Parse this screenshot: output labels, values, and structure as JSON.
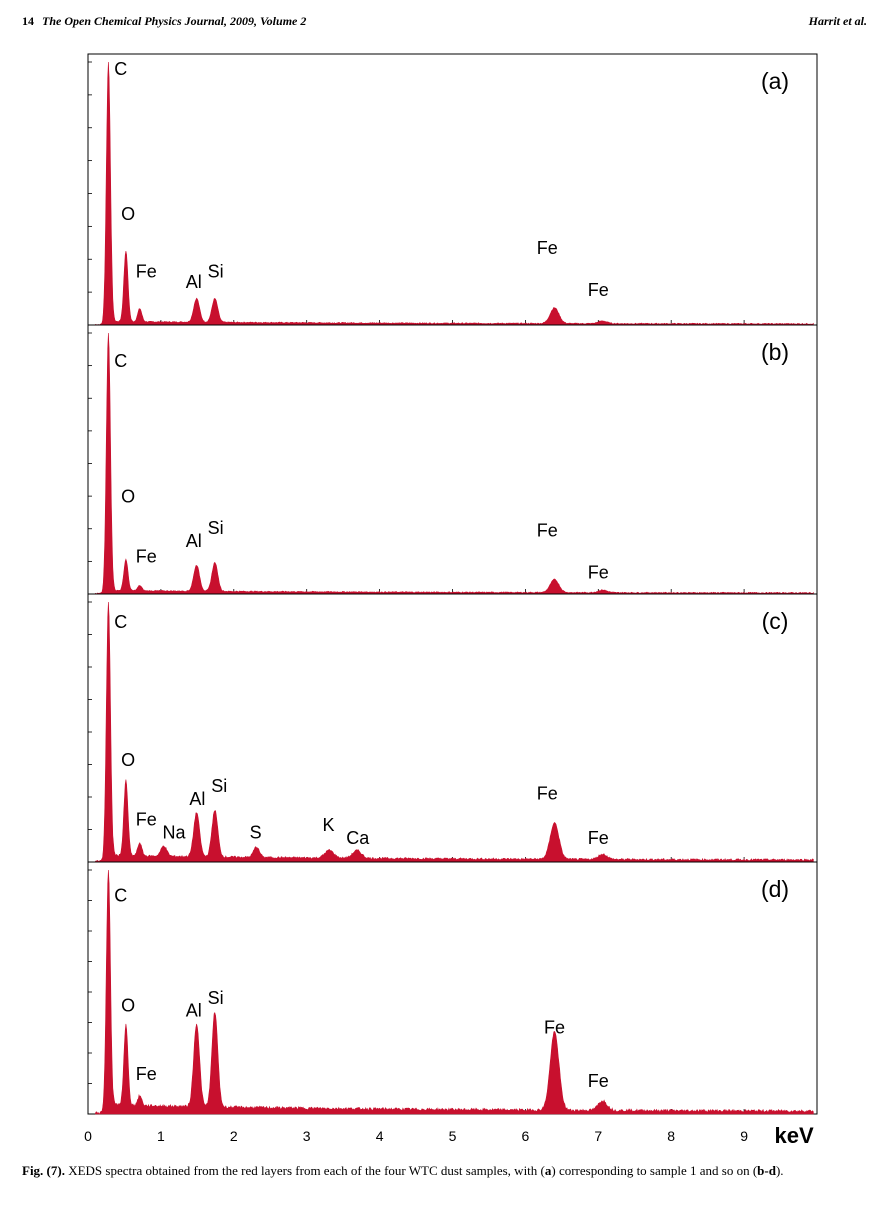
{
  "header": {
    "page_number": "14",
    "journal": "The Open Chemical Physics Journal, 2009, Volume 2",
    "authors": "Harrit et al."
  },
  "chart_data": {
    "type": "area",
    "x_unit_label": "keV",
    "xlim": [
      0,
      10
    ],
    "x_ticks": [
      "0",
      "1",
      "2",
      "3",
      "4",
      "5",
      "6",
      "7",
      "8",
      "9"
    ],
    "fill_color": "#c8102e",
    "panels": [
      {
        "label": "(a)",
        "ylim": [
          0,
          100
        ],
        "peaks": [
          {
            "element": "C",
            "x": 0.28,
            "y": 100
          },
          {
            "element": "O",
            "x": 0.52,
            "y": 27
          },
          {
            "element": "Fe",
            "x": 0.71,
            "y": 5
          },
          {
            "element": "Al",
            "x": 1.49,
            "y": 9
          },
          {
            "element": "Si",
            "x": 1.74,
            "y": 9
          },
          {
            "element": "Fe",
            "x": 6.4,
            "y": 6
          },
          {
            "element": "Fe",
            "x": 7.06,
            "y": 1
          }
        ],
        "labels": [
          {
            "text": "C",
            "x": 0.45,
            "y": 95
          },
          {
            "text": "O",
            "x": 0.55,
            "y": 40
          },
          {
            "text": "Fe",
            "x": 0.8,
            "y": 18
          },
          {
            "text": "Al",
            "x": 1.45,
            "y": 14
          },
          {
            "text": "Si",
            "x": 1.75,
            "y": 18
          },
          {
            "text": "Fe",
            "x": 6.3,
            "y": 27
          },
          {
            "text": "Fe",
            "x": 7.0,
            "y": 11
          }
        ]
      },
      {
        "label": "(b)",
        "ylim": [
          0,
          100
        ],
        "peaks": [
          {
            "element": "C",
            "x": 0.28,
            "y": 100
          },
          {
            "element": "O",
            "x": 0.52,
            "y": 12
          },
          {
            "element": "Fe",
            "x": 0.71,
            "y": 2
          },
          {
            "element": "Al",
            "x": 1.49,
            "y": 10
          },
          {
            "element": "Si",
            "x": 1.74,
            "y": 11
          },
          {
            "element": "Fe",
            "x": 6.4,
            "y": 5
          },
          {
            "element": "Fe",
            "x": 7.06,
            "y": 1
          }
        ],
        "labels": [
          {
            "text": "C",
            "x": 0.45,
            "y": 87
          },
          {
            "text": "O",
            "x": 0.55,
            "y": 35
          },
          {
            "text": "Fe",
            "x": 0.8,
            "y": 12
          },
          {
            "text": "Al",
            "x": 1.45,
            "y": 18
          },
          {
            "text": "Si",
            "x": 1.75,
            "y": 23
          },
          {
            "text": "Fe",
            "x": 6.3,
            "y": 22
          },
          {
            "text": "Fe",
            "x": 7.0,
            "y": 6
          }
        ]
      },
      {
        "label": "(c)",
        "ylim": [
          0,
          100
        ],
        "peaks": [
          {
            "element": "C",
            "x": 0.28,
            "y": 100
          },
          {
            "element": "O",
            "x": 0.52,
            "y": 29
          },
          {
            "element": "Fe",
            "x": 0.71,
            "y": 5
          },
          {
            "element": "Na",
            "x": 1.04,
            "y": 4
          },
          {
            "element": "Al",
            "x": 1.49,
            "y": 17
          },
          {
            "element": "Si",
            "x": 1.74,
            "y": 18
          },
          {
            "element": "S",
            "x": 2.31,
            "y": 4
          },
          {
            "element": "K",
            "x": 3.31,
            "y": 3
          },
          {
            "element": "Ca",
            "x": 3.69,
            "y": 3
          },
          {
            "element": "Fe",
            "x": 6.4,
            "y": 14
          },
          {
            "element": "Fe",
            "x": 7.06,
            "y": 2
          }
        ],
        "labels": [
          {
            "text": "C",
            "x": 0.45,
            "y": 90
          },
          {
            "text": "O",
            "x": 0.55,
            "y": 37
          },
          {
            "text": "Fe",
            "x": 0.8,
            "y": 14
          },
          {
            "text": "Na",
            "x": 1.18,
            "y": 9
          },
          {
            "text": "Al",
            "x": 1.5,
            "y": 22
          },
          {
            "text": "Si",
            "x": 1.8,
            "y": 27
          },
          {
            "text": "S",
            "x": 2.3,
            "y": 9
          },
          {
            "text": "K",
            "x": 3.3,
            "y": 12
          },
          {
            "text": "Ca",
            "x": 3.7,
            "y": 7
          },
          {
            "text": "Fe",
            "x": 6.3,
            "y": 24
          },
          {
            "text": "Fe",
            "x": 7.0,
            "y": 7
          }
        ]
      },
      {
        "label": "(d)",
        "ylim": [
          0,
          100
        ],
        "peaks": [
          {
            "element": "C",
            "x": 0.28,
            "y": 100
          },
          {
            "element": "O",
            "x": 0.52,
            "y": 33
          },
          {
            "element": "Fe",
            "x": 0.71,
            "y": 4
          },
          {
            "element": "Al",
            "x": 1.49,
            "y": 34
          },
          {
            "element": "Si",
            "x": 1.74,
            "y": 39
          },
          {
            "element": "Fe",
            "x": 6.4,
            "y": 32
          },
          {
            "element": "Fe",
            "x": 7.06,
            "y": 4
          }
        ],
        "labels": [
          {
            "text": "C",
            "x": 0.45,
            "y": 87
          },
          {
            "text": "O",
            "x": 0.55,
            "y": 42
          },
          {
            "text": "Fe",
            "x": 0.8,
            "y": 14
          },
          {
            "text": "Al",
            "x": 1.45,
            "y": 40
          },
          {
            "text": "Si",
            "x": 1.75,
            "y": 45
          },
          {
            "text": "Fe",
            "x": 6.4,
            "y": 33
          },
          {
            "text": "Fe",
            "x": 7.0,
            "y": 11
          }
        ]
      }
    ]
  },
  "caption": {
    "label": "Fig. (7).",
    "text_1": " XEDS spectra obtained from the red layers from each of the four WTC dust samples, with (",
    "bold_1": "a",
    "text_2": ") corresponding to sample 1 and so on (",
    "bold_2": "b-d",
    "text_3": ")."
  }
}
